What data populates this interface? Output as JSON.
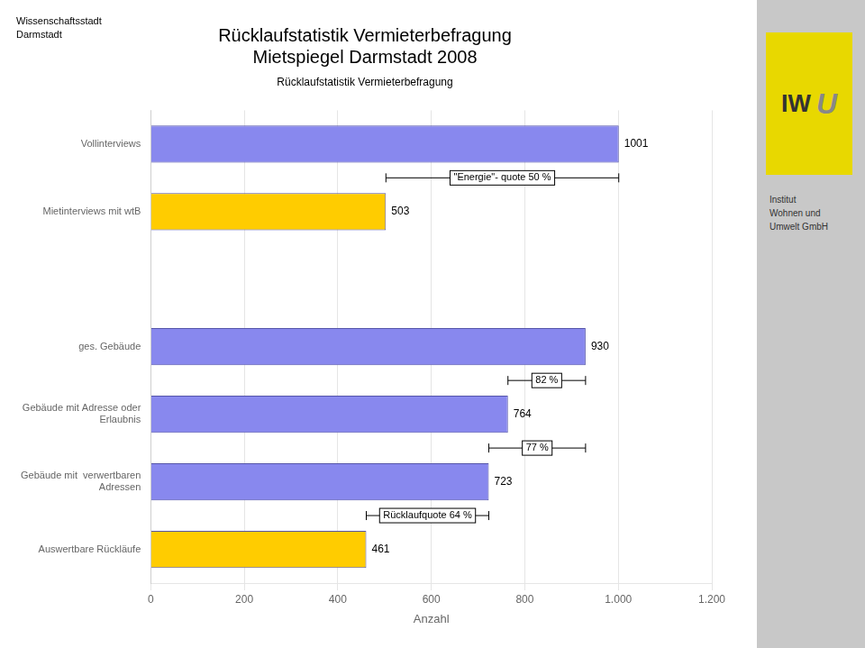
{
  "chart_data": {
    "type": "bar",
    "orientation": "horizontal",
    "title": "Rücklaufstatistik Vermieterbefragung\nMietspiegel Darmstadt 2008",
    "subtitle": "Rücklaufstatistik Vermieterbefragung",
    "xlabel": "Anzahl",
    "categories": [
      "Vollinterviews",
      "Mietinterviews mit wtB",
      null,
      "ges. Gebäude",
      "Gebäude mit Adresse oder\nErlaubnis",
      "Gebäude mit  verwertbaren\nAdressen",
      "Auswertbare Rückläufe"
    ],
    "values": [
      1001,
      503,
      null,
      930,
      764,
      723,
      461
    ],
    "colors": [
      "#8888ee",
      "#ffcc00",
      null,
      "#8888ee",
      "#8888ee",
      "#8888ee",
      "#ffcc00"
    ],
    "xlim": [
      0,
      1200
    ],
    "xticks": [
      0,
      200,
      400,
      600,
      800,
      {
        "value": 1000,
        "label": "1.000"
      },
      {
        "value": 1200,
        "label": "1.200"
      }
    ],
    "grid": true,
    "data_labels": true,
    "annotations": [
      {
        "text": "\"Energie\"- quote 50 %",
        "x": [
          503,
          1001
        ]
      },
      {
        "text": "82 %",
        "x": [
          764,
          930
        ]
      },
      {
        "text": "77 %",
        "x": [
          723,
          930
        ]
      },
      {
        "text": "Rücklaufquote 64 %",
        "x": [
          461,
          723
        ]
      },
      {
        "text": "Wissenschaftsstadt\nDarmstadt"
      },
      {
        "text": "IW"
      },
      {
        "text": "U"
      },
      {
        "text": "Institut\nWohnen und\nUmwelt GmbH"
      }
    ]
  }
}
